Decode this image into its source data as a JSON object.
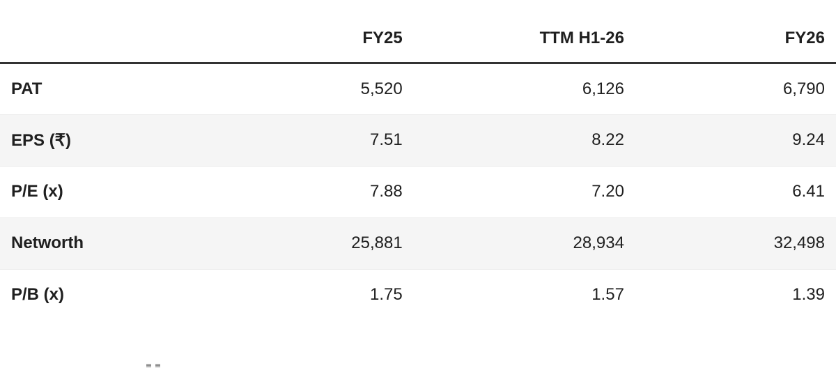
{
  "colors": {
    "background": "#ffffff",
    "text": "#1f1f1f",
    "header_rule": "#323232",
    "row_divider": "#ececec",
    "stripe_row_bg": "#f5f5f5"
  },
  "table": {
    "columns": [
      {
        "label": ""
      },
      {
        "label": "FY25"
      },
      {
        "label": "TTM H1-26"
      },
      {
        "label": "FY26"
      }
    ],
    "rows": [
      {
        "label": "PAT",
        "values": [
          "5,520",
          "6,126",
          "6,790"
        ]
      },
      {
        "label": "EPS (₹)",
        "values": [
          "7.51",
          "8.22",
          "9.24"
        ]
      },
      {
        "label": "P/E (x)",
        "values": [
          "7.88",
          "7.20",
          "6.41"
        ]
      },
      {
        "label": "Networth",
        "values": [
          "25,881",
          "28,934",
          "32,498"
        ]
      },
      {
        "label": "P/B (x)",
        "values": [
          "1.75",
          "1.57",
          "1.39"
        ]
      }
    ]
  },
  "chart_data": {
    "type": "table",
    "title": "",
    "columns": [
      "",
      "FY25",
      "TTM H1-26",
      "FY26"
    ],
    "rows": [
      [
        "PAT",
        "5,520",
        "6,126",
        "6,790"
      ],
      [
        "EPS (₹)",
        "7.51",
        "8.22",
        "9.24"
      ],
      [
        "P/E (x)",
        "7.88",
        "7.20",
        "6.41"
      ],
      [
        "Networth",
        "25,881",
        "28,934",
        "32,498"
      ],
      [
        "P/B (x)",
        "1.75",
        "1.57",
        "1.39"
      ]
    ],
    "layout_hints": {
      "numeric_columns_right_aligned": true,
      "zebra_striping_on_rows": [
        "EPS (₹)",
        "Networth"
      ],
      "thick_rule_under_header": true
    }
  }
}
